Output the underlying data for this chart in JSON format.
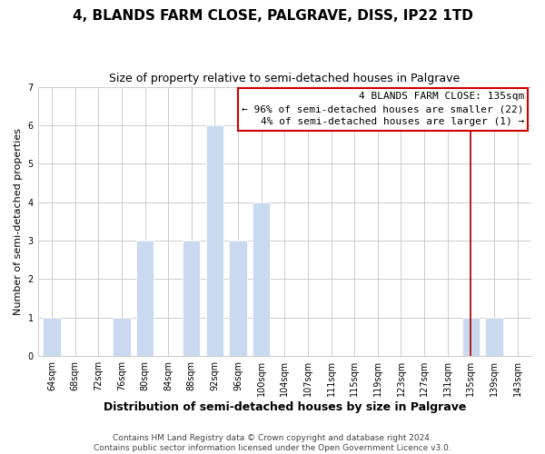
{
  "title": "4, BLANDS FARM CLOSE, PALGRAVE, DISS, IP22 1TD",
  "subtitle": "Size of property relative to semi-detached houses in Palgrave",
  "xlabel": "Distribution of semi-detached houses by size in Palgrave",
  "ylabel": "Number of semi-detached properties",
  "bins": [
    "64sqm",
    "68sqm",
    "72sqm",
    "76sqm",
    "80sqm",
    "84sqm",
    "88sqm",
    "92sqm",
    "96sqm",
    "100sqm",
    "104sqm",
    "107sqm",
    "111sqm",
    "115sqm",
    "119sqm",
    "123sqm",
    "127sqm",
    "131sqm",
    "135sqm",
    "139sqm",
    "143sqm"
  ],
  "values": [
    1,
    0,
    0,
    1,
    3,
    0,
    3,
    6,
    3,
    4,
    0,
    0,
    0,
    0,
    0,
    0,
    0,
    0,
    1,
    1,
    0
  ],
  "bar_color": "#c9d9ef",
  "bar_edge_color": "#ffffff",
  "grid_color": "#cccccc",
  "vline_x_index": 18,
  "vline_color": "#aa0000",
  "ylim": [
    0,
    7
  ],
  "yticks": [
    0,
    1,
    2,
    3,
    4,
    5,
    6,
    7
  ],
  "annotation_title": "4 BLANDS FARM CLOSE: 135sqm",
  "annotation_line1": "← 96% of semi-detached houses are smaller (22)",
  "annotation_line2": "4% of semi-detached houses are larger (1) →",
  "annotation_box_edge_color": "#cc0000",
  "footer1": "Contains HM Land Registry data © Crown copyright and database right 2024.",
  "footer2": "Contains public sector information licensed under the Open Government Licence v3.0.",
  "title_fontsize": 11,
  "subtitle_fontsize": 9,
  "xlabel_fontsize": 9,
  "ylabel_fontsize": 8,
  "tick_fontsize": 7,
  "footer_fontsize": 6.5,
  "ann_fontsize": 8
}
